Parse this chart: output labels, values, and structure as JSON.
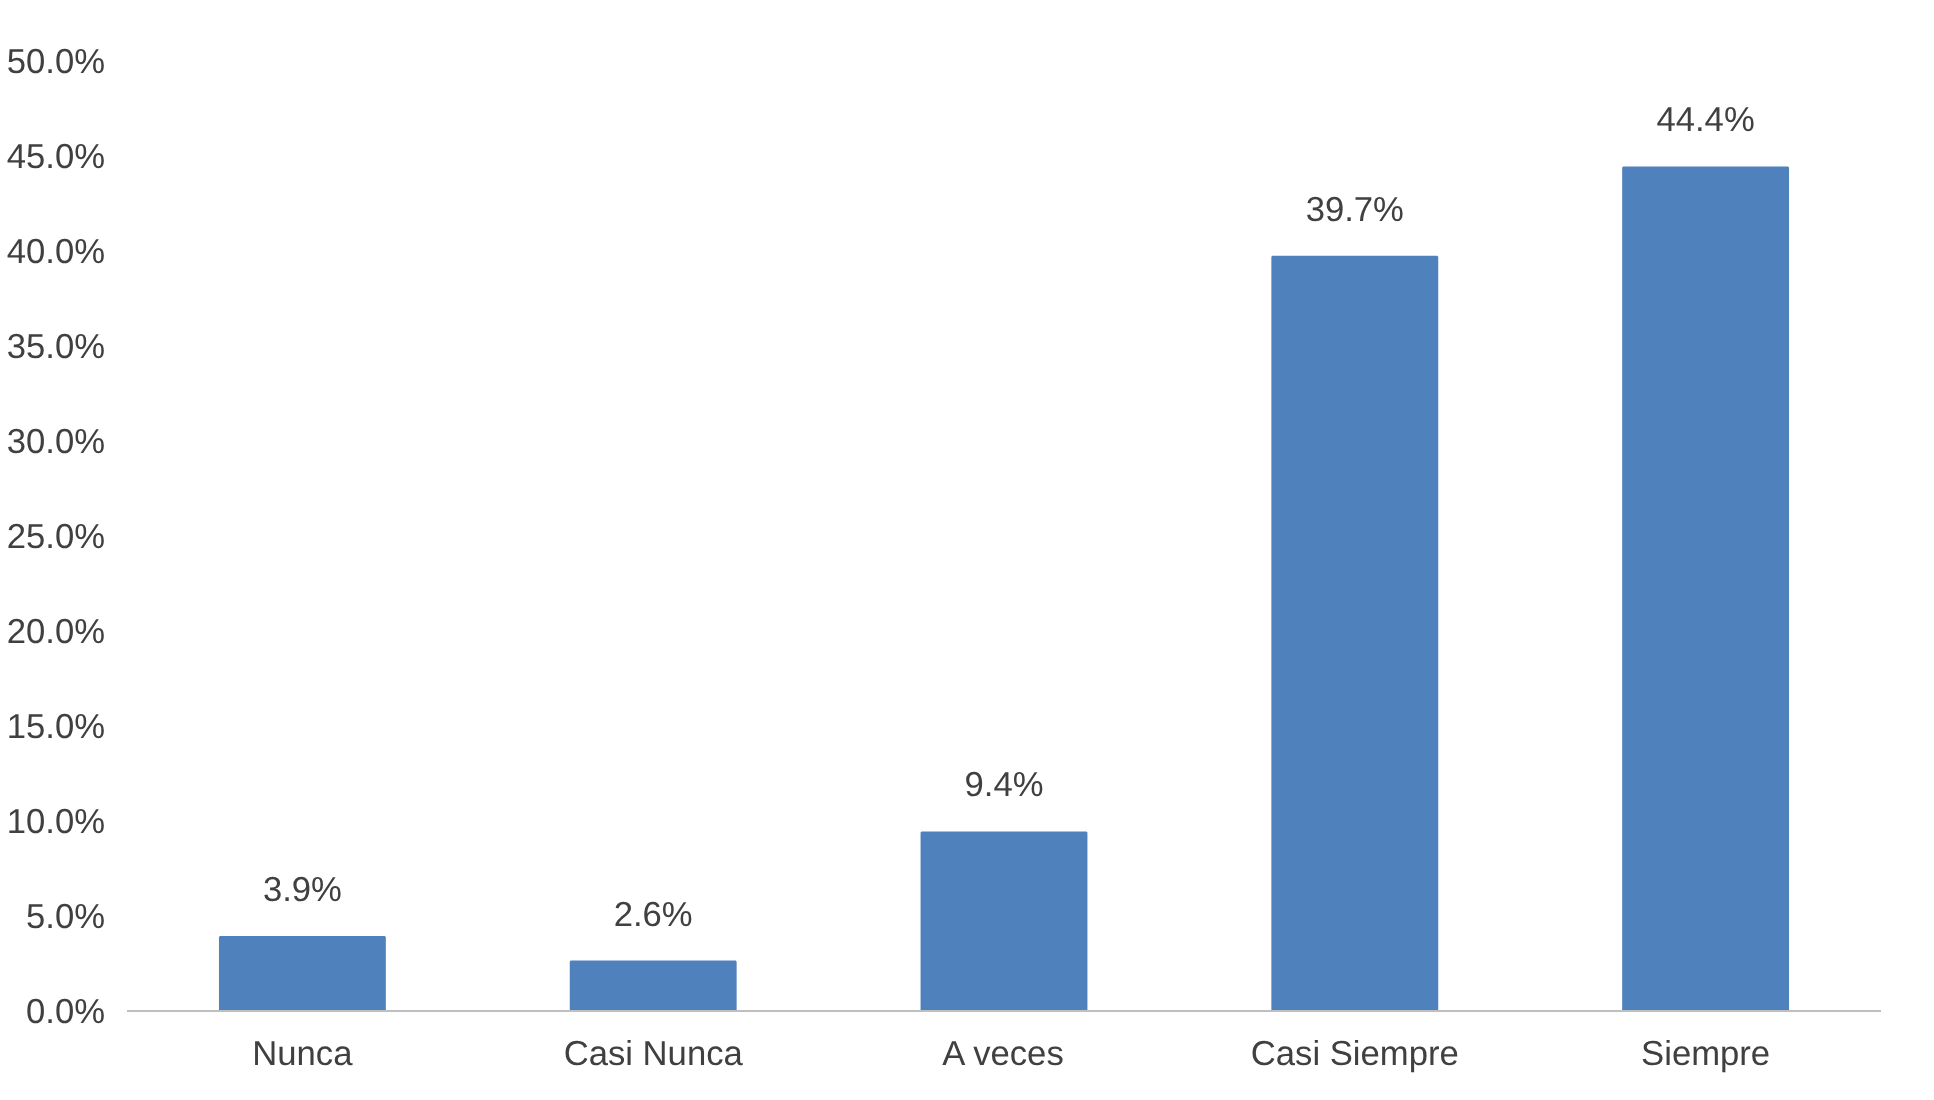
{
  "chart_data": {
    "type": "bar",
    "categories": [
      "Nunca",
      "Casi Nunca",
      "A veces",
      "Casi Siempre",
      "Siempre"
    ],
    "values": [
      3.9,
      2.6,
      9.4,
      39.7,
      44.4
    ],
    "color": "#4f81bd",
    "value_labels": [
      "3.9%",
      "2.6%",
      "9.4%",
      "39.7%",
      "44.4%"
    ],
    "ylim": [
      0,
      50
    ],
    "yticks": [
      {
        "value": 0,
        "label": "0.0%"
      },
      {
        "value": 5,
        "label": "5.0%"
      },
      {
        "value": 10,
        "label": "10.0%"
      },
      {
        "value": 15,
        "label": "15.0%"
      },
      {
        "value": 20,
        "label": "20.0%"
      },
      {
        "value": 25,
        "label": "25.0%"
      },
      {
        "value": 30,
        "label": "30.0%"
      },
      {
        "value": 35,
        "label": "35.0%"
      },
      {
        "value": 40,
        "label": "40.0%"
      },
      {
        "value": 45,
        "label": "45.0%"
      },
      {
        "value": 50,
        "label": "50.0%"
      }
    ],
    "grid": false
  }
}
